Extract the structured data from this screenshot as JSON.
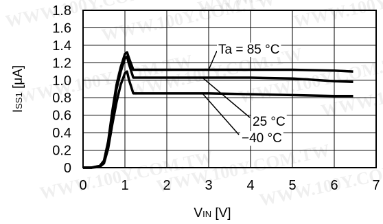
{
  "chart_data": {
    "type": "line",
    "xlabel": "VIN [V]",
    "ylabel": "ISS1 [μA]",
    "xlim": [
      0,
      7
    ],
    "ylim": [
      0,
      1.8
    ],
    "x_ticks": [
      "0",
      "1",
      "2",
      "3",
      "4",
      "5",
      "6",
      "7"
    ],
    "y_ticks": [
      "0",
      "0.2",
      "0.4",
      "0.6",
      "0.8",
      "1.0",
      "1.2",
      "1.4",
      "1.6",
      "1.8"
    ],
    "grid": true,
    "series": [
      {
        "name": "Ta = 85 °C",
        "points": [
          [
            0,
            0
          ],
          [
            0.2,
            0
          ],
          [
            0.4,
            0.02
          ],
          [
            0.5,
            0.08
          ],
          [
            0.6,
            0.3
          ],
          [
            0.7,
            0.65
          ],
          [
            0.8,
            0.95
          ],
          [
            0.9,
            1.15
          ],
          [
            1.0,
            1.3
          ],
          [
            1.05,
            1.32
          ],
          [
            1.1,
            1.25
          ],
          [
            1.2,
            1.12
          ],
          [
            2,
            1.12
          ],
          [
            3,
            1.12
          ],
          [
            4,
            1.12
          ],
          [
            5,
            1.12
          ],
          [
            6,
            1.11
          ],
          [
            6.45,
            1.1
          ]
        ]
      },
      {
        "name": "25 °C",
        "points": [
          [
            0,
            0
          ],
          [
            0.2,
            0
          ],
          [
            0.4,
            0.02
          ],
          [
            0.5,
            0.07
          ],
          [
            0.6,
            0.28
          ],
          [
            0.7,
            0.6
          ],
          [
            0.8,
            0.9
          ],
          [
            0.9,
            1.1
          ],
          [
            1.0,
            1.25
          ],
          [
            1.05,
            1.27
          ],
          [
            1.1,
            1.18
          ],
          [
            1.2,
            1.03
          ],
          [
            2,
            1.03
          ],
          [
            3,
            1.03
          ],
          [
            4,
            1.03
          ],
          [
            5,
            1.02
          ],
          [
            6,
            0.99
          ],
          [
            6.45,
            0.98
          ]
        ]
      },
      {
        "name": "−40 °C",
        "points": [
          [
            0,
            0
          ],
          [
            0.2,
            0
          ],
          [
            0.4,
            0.01
          ],
          [
            0.5,
            0.05
          ],
          [
            0.6,
            0.22
          ],
          [
            0.7,
            0.5
          ],
          [
            0.8,
            0.75
          ],
          [
            0.9,
            0.95
          ],
          [
            1.0,
            1.08
          ],
          [
            1.05,
            1.1
          ],
          [
            1.1,
            1.0
          ],
          [
            1.2,
            0.85
          ],
          [
            2,
            0.85
          ],
          [
            3,
            0.85
          ],
          [
            4,
            0.84
          ],
          [
            5,
            0.83
          ],
          [
            6,
            0.82
          ],
          [
            6.45,
            0.82
          ]
        ]
      }
    ],
    "annotations": [
      {
        "text": "Ta = 85 °C",
        "series": "Ta = 85 °C"
      },
      {
        "text": "25 °C",
        "series": "25 °C"
      },
      {
        "text": "−40 °C",
        "series": "−40 °C"
      }
    ]
  },
  "watermark": "WWW.100Y.COM.TW"
}
